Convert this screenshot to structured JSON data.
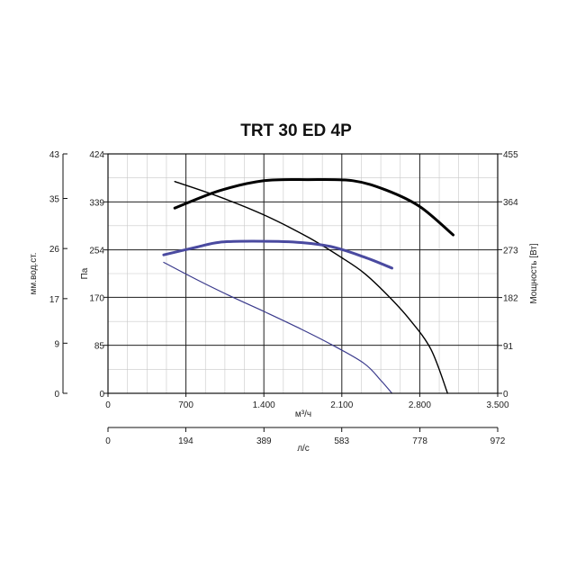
{
  "chart_data": {
    "type": "line",
    "title": "TRT 30 ED 4P",
    "grid": true,
    "x_axis": {
      "label": "м³/ч",
      "range": [
        0,
        3500
      ],
      "ticks": [
        "0",
        "700",
        "1.400",
        "2.100",
        "2.800",
        "3.500"
      ],
      "tick_values": [
        0,
        700,
        1400,
        2100,
        2800,
        3500
      ]
    },
    "x2_axis": {
      "label": "л/с",
      "range": [
        0,
        972
      ],
      "ticks": [
        "0",
        "194",
        "389",
        "583",
        "778",
        "972"
      ],
      "tick_values": [
        0,
        194,
        389,
        583,
        778,
        972
      ]
    },
    "y_axis": {
      "label": "Па",
      "range": [
        0,
        424
      ],
      "ticks": [
        "0",
        "85",
        "170",
        "254",
        "339",
        "424"
      ],
      "tick_values": [
        0,
        85,
        170,
        254,
        339,
        424
      ]
    },
    "y_outer_axis": {
      "label": "мм.вод.ст.",
      "range": [
        0,
        43
      ],
      "ticks": [
        "0",
        "9",
        "17",
        "26",
        "35",
        "43"
      ],
      "tick_values": [
        0,
        9,
        17,
        26,
        35,
        43
      ]
    },
    "y_right_axis": {
      "label": "Мощность [Вт]",
      "range": [
        0,
        455
      ],
      "ticks": [
        "0",
        "91",
        "182",
        "273",
        "364",
        "455"
      ],
      "tick_values": [
        0,
        91,
        182,
        273,
        364,
        455
      ]
    },
    "series": [
      {
        "axis": "pressure",
        "color": "#000000",
        "width": 1.4,
        "x": [
          600,
          1000,
          1400,
          1800,
          2100,
          2300,
          2500,
          2700,
          2900,
          3050
        ],
        "y": [
          375,
          348,
          316,
          276,
          240,
          213,
          176,
          133,
          78,
          0
        ]
      },
      {
        "axis": "pressure",
        "color": "#3a3a8c",
        "width": 1.2,
        "x": [
          500,
          800,
          1100,
          1400,
          1700,
          2000,
          2300,
          2450,
          2550
        ],
        "y": [
          232,
          201,
          172,
          145,
          117,
          87,
          53,
          23,
          0
        ]
      },
      {
        "axis": "power",
        "color": "#000000",
        "width": 3,
        "x": [
          600,
          1000,
          1400,
          1800,
          2200,
          2500,
          2800,
          3100
        ],
        "y": [
          352,
          385,
          404,
          406,
          404,
          386,
          355,
          301
        ]
      },
      {
        "axis": "power",
        "color": "#4a4aa0",
        "width": 3,
        "x": [
          500,
          800,
          1000,
          1300,
          1700,
          2000,
          2300,
          2550
        ],
        "y": [
          263,
          278,
          287,
          289,
          287,
          279,
          259,
          238
        ]
      }
    ]
  }
}
